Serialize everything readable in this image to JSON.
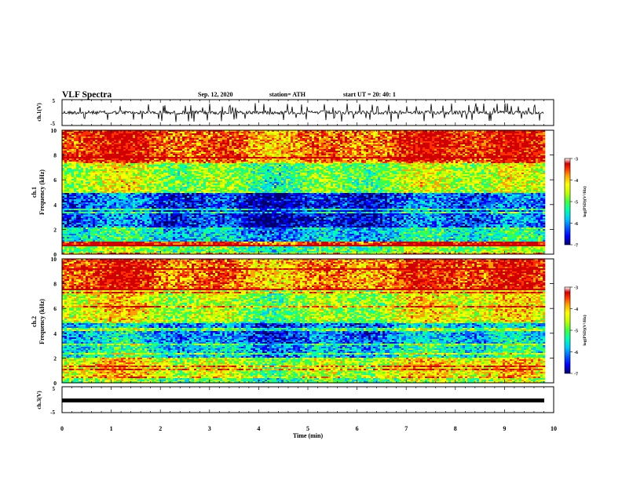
{
  "header": {
    "title": "VLF Spectra",
    "date": "Sep. 12, 2020",
    "station": "station= ATH",
    "start": "start  UT  =  20: 40: 1"
  },
  "chart_data": [
    {
      "type": "line",
      "panel": "ch1-waveform",
      "ylabel": "ch.1(V)",
      "ylim": [
        -5,
        5
      ],
      "ytick_labels": [
        "5",
        "-5"
      ],
      "xlim": [
        0,
        10
      ],
      "trace_color": "#000000"
    },
    {
      "type": "heatmap",
      "panel": "ch1-spectrogram",
      "ylabel_top": "ch.1",
      "ylabel": "Frequency  (kHz)",
      "ylim": [
        0,
        10
      ],
      "ytick_labels": [
        "0",
        "2",
        "4",
        "6",
        "8",
        "10"
      ],
      "xlim": [
        0,
        9.8
      ],
      "colorbar": {
        "label": "log(PSD)(V²/Hz)",
        "range": [
          -7,
          -3
        ],
        "tick_labels": [
          "-3",
          "-4",
          "-5",
          "-6",
          "-7"
        ],
        "colors": [
          "#000070",
          "#0000ff",
          "#0060ff",
          "#00c8ff",
          "#00ffb0",
          "#40ff40",
          "#c0ff00",
          "#ffff00",
          "#ffa000",
          "#ff3000",
          "#d00000",
          "#ffffff"
        ]
      },
      "bands": [
        {
          "from_khz": 0.0,
          "to_khz": 0.6,
          "level": -5.0
        },
        {
          "from_khz": 0.6,
          "to_khz": 1.0,
          "level": -3.4
        },
        {
          "from_khz": 1.0,
          "to_khz": 2.0,
          "level": -5.6
        },
        {
          "from_khz": 2.0,
          "to_khz": 5.0,
          "level": -6.3
        },
        {
          "from_khz": 5.0,
          "to_khz": 7.5,
          "level": -4.8
        },
        {
          "from_khz": 7.5,
          "to_khz": 10.0,
          "level": -3.6
        }
      ]
    },
    {
      "type": "heatmap",
      "panel": "ch2-spectrogram",
      "ylabel_top": "ch.2",
      "ylabel": "Frequency  (kHz)",
      "ylim": [
        0,
        10
      ],
      "ytick_labels": [
        "0",
        "2",
        "4",
        "6",
        "8",
        "10"
      ],
      "xlim": [
        0,
        9.8
      ],
      "colorbar": {
        "label": "log(PSD)(V²/Hz)",
        "range": [
          -7,
          -3
        ],
        "tick_labels": [
          "-3",
          "-4",
          "-5",
          "-6",
          "-7"
        ]
      },
      "bands": [
        {
          "from_khz": 0.0,
          "to_khz": 0.5,
          "level": -5.0
        },
        {
          "from_khz": 0.5,
          "to_khz": 2.0,
          "level": -4.5
        },
        {
          "from_khz": 2.0,
          "to_khz": 3.0,
          "level": -5.6
        },
        {
          "from_khz": 3.0,
          "to_khz": 5.0,
          "level": -5.9
        },
        {
          "from_khz": 5.0,
          "to_khz": 7.5,
          "level": -4.6
        },
        {
          "from_khz": 7.5,
          "to_khz": 10.0,
          "level": -3.7
        }
      ]
    },
    {
      "type": "line",
      "panel": "ch3-waveform",
      "ylabel": "ch.3(V)",
      "ylim": [
        -5,
        5
      ],
      "ytick_labels": [
        "5",
        "-5"
      ],
      "xlim": [
        0,
        10
      ],
      "xlabel": "Time  (min)",
      "xtick_labels": [
        "0",
        "1",
        "2",
        "3",
        "4",
        "5",
        "6",
        "7",
        "8",
        "9",
        "10"
      ],
      "trace_color": "#000000"
    }
  ]
}
